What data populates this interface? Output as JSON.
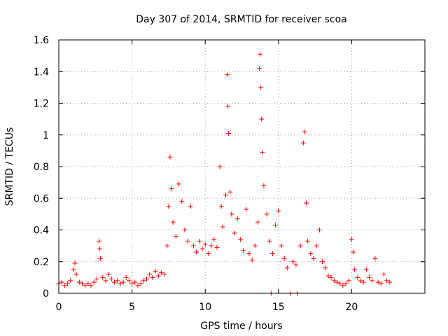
{
  "chart_data": {
    "type": "scatter",
    "title": "Day 307 of 2014, SRMTID for receiver scoa",
    "xlabel": "GPS time / hours",
    "ylabel": "SRMTID / TECUs",
    "xlim": [
      0,
      25
    ],
    "ylim": [
      0,
      1.6
    ],
    "xticks": [
      0,
      5,
      10,
      15,
      20
    ],
    "xtick_labels": [
      "0",
      "5",
      "10",
      "15",
      "20"
    ],
    "yticks": [
      0,
      0.2,
      0.4,
      0.6,
      0.8,
      1,
      1.2,
      1.4,
      1.6
    ],
    "ytick_labels": [
      "0",
      "0.2",
      "0.4",
      "0.6",
      "0.8",
      "1",
      "1.2",
      "1.4",
      "1.6"
    ],
    "grid": true,
    "marker": "+",
    "color": "#ff0000",
    "series": [
      {
        "name": "SRMTID",
        "points": [
          [
            0.0,
            0.06
          ],
          [
            0.2,
            0.07
          ],
          [
            0.4,
            0.05
          ],
          [
            0.6,
            0.06
          ],
          [
            0.8,
            0.08
          ],
          [
            1.0,
            0.15
          ],
          [
            1.1,
            0.19
          ],
          [
            1.2,
            0.12
          ],
          [
            1.4,
            0.07
          ],
          [
            1.6,
            0.06
          ],
          [
            1.8,
            0.05
          ],
          [
            2.0,
            0.06
          ],
          [
            2.2,
            0.05
          ],
          [
            2.4,
            0.07
          ],
          [
            2.6,
            0.09
          ],
          [
            2.75,
            0.33
          ],
          [
            2.8,
            0.28
          ],
          [
            2.85,
            0.22
          ],
          [
            3.0,
            0.1
          ],
          [
            3.2,
            0.08
          ],
          [
            3.4,
            0.12
          ],
          [
            3.6,
            0.09
          ],
          [
            3.8,
            0.07
          ],
          [
            4.0,
            0.08
          ],
          [
            4.2,
            0.06
          ],
          [
            4.4,
            0.07
          ],
          [
            4.6,
            0.1
          ],
          [
            4.8,
            0.08
          ],
          [
            5.0,
            0.06
          ],
          [
            5.2,
            0.07
          ],
          [
            5.4,
            0.05
          ],
          [
            5.6,
            0.06
          ],
          [
            5.8,
            0.08
          ],
          [
            6.0,
            0.09
          ],
          [
            6.2,
            0.12
          ],
          [
            6.4,
            0.1
          ],
          [
            6.6,
            0.14
          ],
          [
            6.8,
            0.11
          ],
          [
            7.0,
            0.13
          ],
          [
            7.2,
            0.12
          ],
          [
            7.4,
            0.3
          ],
          [
            7.5,
            0.55
          ],
          [
            7.6,
            0.86
          ],
          [
            7.7,
            0.66
          ],
          [
            7.8,
            0.45
          ],
          [
            8.0,
            0.36
          ],
          [
            8.2,
            0.69
          ],
          [
            8.4,
            0.58
          ],
          [
            8.6,
            0.4
          ],
          [
            8.8,
            0.33
          ],
          [
            9.0,
            0.55
          ],
          [
            9.2,
            0.3
          ],
          [
            9.4,
            0.26
          ],
          [
            9.6,
            0.33
          ],
          [
            9.8,
            0.28
          ],
          [
            10.0,
            0.31
          ],
          [
            10.2,
            0.25
          ],
          [
            10.4,
            0.3
          ],
          [
            10.6,
            0.34
          ],
          [
            10.8,
            0.29
          ],
          [
            11.0,
            0.8
          ],
          [
            11.1,
            0.55
          ],
          [
            11.2,
            0.42
          ],
          [
            11.4,
            0.62
          ],
          [
            11.5,
            1.38
          ],
          [
            11.55,
            1.18
          ],
          [
            11.6,
            1.01
          ],
          [
            11.7,
            0.64
          ],
          [
            11.8,
            0.5
          ],
          [
            12.0,
            0.38
          ],
          [
            12.2,
            0.47
          ],
          [
            12.4,
            0.34
          ],
          [
            12.6,
            0.27
          ],
          [
            12.8,
            0.53
          ],
          [
            13.0,
            0.25
          ],
          [
            13.2,
            0.21
          ],
          [
            13.4,
            0.3
          ],
          [
            13.6,
            0.45
          ],
          [
            13.7,
            1.42
          ],
          [
            13.75,
            1.51
          ],
          [
            13.8,
            1.3
          ],
          [
            13.85,
            1.1
          ],
          [
            13.9,
            0.89
          ],
          [
            14.0,
            0.68
          ],
          [
            14.2,
            0.5
          ],
          [
            14.4,
            0.33
          ],
          [
            14.5,
            0.0
          ],
          [
            14.6,
            0.25
          ],
          [
            14.8,
            0.43
          ],
          [
            15.0,
            0.52
          ],
          [
            15.2,
            0.3
          ],
          [
            15.4,
            0.22
          ],
          [
            15.6,
            0.16
          ],
          [
            15.8,
            0.0
          ],
          [
            16.0,
            0.2
          ],
          [
            16.2,
            0.18
          ],
          [
            16.3,
            0.0
          ],
          [
            16.5,
            0.3
          ],
          [
            16.7,
            0.95
          ],
          [
            16.8,
            1.02
          ],
          [
            16.9,
            0.57
          ],
          [
            17.0,
            0.33
          ],
          [
            17.2,
            0.25
          ],
          [
            17.4,
            0.22
          ],
          [
            17.6,
            0.3
          ],
          [
            17.8,
            0.4
          ],
          [
            18.0,
            0.2
          ],
          [
            18.2,
            0.16
          ],
          [
            18.4,
            0.11
          ],
          [
            18.6,
            0.1
          ],
          [
            18.8,
            0.08
          ],
          [
            19.0,
            0.07
          ],
          [
            19.2,
            0.06
          ],
          [
            19.4,
            0.05
          ],
          [
            19.6,
            0.06
          ],
          [
            19.8,
            0.08
          ],
          [
            20.0,
            0.34
          ],
          [
            20.1,
            0.26
          ],
          [
            20.2,
            0.15
          ],
          [
            20.4,
            0.1
          ],
          [
            20.6,
            0.08
          ],
          [
            20.8,
            0.07
          ],
          [
            21.0,
            0.15
          ],
          [
            21.2,
            0.1
          ],
          [
            21.4,
            0.08
          ],
          [
            21.6,
            0.22
          ],
          [
            21.8,
            0.07
          ],
          [
            22.0,
            0.06
          ],
          [
            22.2,
            0.12
          ],
          [
            22.4,
            0.08
          ],
          [
            22.6,
            0.07
          ]
        ]
      }
    ]
  }
}
